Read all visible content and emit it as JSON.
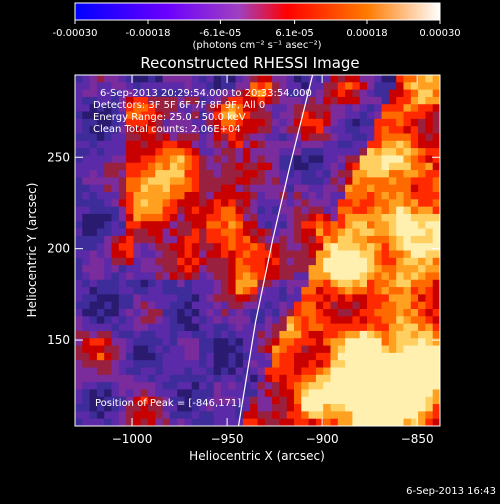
{
  "chart_data": {
    "type": "heatmap",
    "title": "Reconstructed RHESSI Image",
    "xlabel": "Heliocentric X (arcsec)",
    "ylabel": "Heliocentric Y (arcsec)",
    "xlim": [
      -1030,
      -838
    ],
    "ylim": [
      103,
      295
    ],
    "x_ticks": [
      -1000,
      -950,
      -900,
      -850
    ],
    "x_tick_labels": [
      "−1000",
      "−950",
      "−900",
      "−850"
    ],
    "y_ticks": [
      150,
      200,
      250
    ],
    "y_tick_labels": [
      "150",
      "200",
      "250"
    ],
    "colorbar": {
      "range": [
        -0.0003,
        0.0003
      ],
      "ticks": [
        -0.0003,
        -0.00018,
        -6.1e-05,
        6.1e-05,
        0.00018,
        0.0003
      ],
      "tick_labels": [
        "-0.00030",
        "-0.00018",
        "-6.1e-05",
        "6.1e-05",
        "0.00018",
        "0.00030"
      ],
      "units": "(photons cm⁻² s⁻¹ asec⁻²)",
      "colors": [
        "#0000ff",
        "#6a00ff",
        "#a040c0",
        "#ff0000",
        "#ff7a00",
        "#ffffff"
      ]
    },
    "annotations": {
      "time_range": "6-Sep-2013 20:29:54.000 to 20:33:54.000",
      "detectors": "Detectors: 3F 5F 6F 7F 8F 9F, All 0",
      "energy_range": "Energy Range: 25.0 - 50.0 keV",
      "clean": "Clean     Total counts: 2.06E+04",
      "peak": "Position of Peak = [-846,171]"
    },
    "grid": false,
    "limb_line": [
      [
        -944,
        103
      ],
      [
        -935,
        160
      ],
      [
        -926,
        205
      ],
      [
        -917,
        245
      ],
      [
        -905,
        295
      ]
    ],
    "footer_timestamp": "6-Sep-2013 16:43"
  }
}
